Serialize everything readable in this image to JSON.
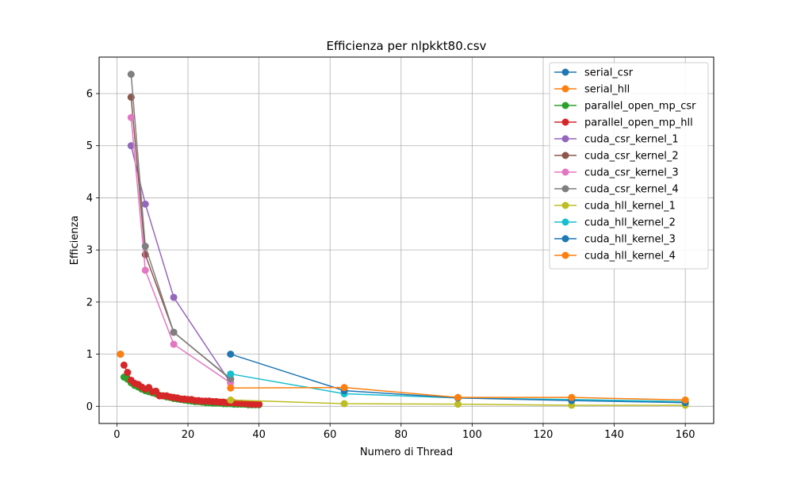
{
  "chart_data": {
    "type": "line",
    "title": "Efficienza per nlpkkt80.csv",
    "xlabel": "Numero di Thread",
    "ylabel": "Efficienza",
    "xlim": [
      -5,
      168
    ],
    "ylim": [
      -0.33,
      6.7
    ],
    "xticks": [
      0,
      20,
      40,
      60,
      80,
      100,
      120,
      140,
      160
    ],
    "yticks": [
      0,
      1,
      2,
      3,
      4,
      5,
      6
    ],
    "grid": true,
    "legend_position": "top-right",
    "series": [
      {
        "name": "serial_csr",
        "color": "#1f77b4",
        "x": [
          1
        ],
        "y": [
          1.0
        ]
      },
      {
        "name": "serial_hll",
        "color": "#ff7f0e",
        "x": [
          1
        ],
        "y": [
          1.0
        ]
      },
      {
        "name": "parallel_open_mp_csr",
        "color": "#2ca02c",
        "x": [
          2,
          3,
          4,
          5,
          6,
          7,
          8,
          9,
          10,
          11,
          12,
          13,
          14,
          15,
          16,
          17,
          18,
          19,
          20,
          21,
          22,
          23,
          24,
          25,
          26,
          27,
          28,
          29,
          30,
          31,
          32,
          33,
          34,
          35,
          36,
          37,
          38,
          39,
          40
        ],
        "y": [
          0.56,
          0.52,
          0.45,
          0.4,
          0.37,
          0.33,
          0.3,
          0.28,
          0.26,
          0.24,
          0.21,
          0.2,
          0.18,
          0.17,
          0.15,
          0.14,
          0.13,
          0.12,
          0.11,
          0.1,
          0.09,
          0.09,
          0.08,
          0.07,
          0.07,
          0.06,
          0.06,
          0.06,
          0.05,
          0.05,
          0.05,
          0.04,
          0.04,
          0.04,
          0.04,
          0.03,
          0.03,
          0.03,
          0.03
        ]
      },
      {
        "name": "parallel_open_mp_hll",
        "color": "#d62728",
        "x": [
          2,
          3,
          4,
          5,
          6,
          7,
          8,
          9,
          10,
          11,
          12,
          13,
          14,
          15,
          16,
          17,
          18,
          19,
          20,
          21,
          22,
          23,
          24,
          25,
          26,
          27,
          28,
          29,
          30,
          31,
          32,
          33,
          34,
          35,
          36,
          37,
          38,
          39,
          40
        ],
        "y": [
          0.79,
          0.65,
          0.5,
          0.44,
          0.42,
          0.37,
          0.33,
          0.36,
          0.28,
          0.29,
          0.2,
          0.2,
          0.2,
          0.18,
          0.17,
          0.16,
          0.14,
          0.14,
          0.13,
          0.13,
          0.11,
          0.11,
          0.1,
          0.1,
          0.1,
          0.09,
          0.09,
          0.08,
          0.08,
          0.07,
          0.07,
          0.07,
          0.06,
          0.06,
          0.05,
          0.05,
          0.04,
          0.04,
          0.04
        ]
      },
      {
        "name": "cuda_csr_kernel_1",
        "color": "#9467bd",
        "x": [
          4,
          8,
          16,
          32
        ],
        "y": [
          5.0,
          3.88,
          2.09,
          0.45
        ]
      },
      {
        "name": "cuda_csr_kernel_2",
        "color": "#8c564b",
        "x": [
          4,
          8,
          16,
          32
        ],
        "y": [
          5.93,
          2.91,
          1.42,
          0.52
        ]
      },
      {
        "name": "cuda_csr_kernel_3",
        "color": "#e377c2",
        "x": [
          4,
          8,
          16,
          32
        ],
        "y": [
          5.54,
          2.61,
          1.19,
          0.45
        ]
      },
      {
        "name": "cuda_csr_kernel_4",
        "color": "#7f7f7f",
        "x": [
          4,
          8,
          16,
          32
        ],
        "y": [
          6.37,
          3.07,
          1.42,
          0.53
        ]
      },
      {
        "name": "cuda_hll_kernel_1",
        "color": "#bcbd22",
        "x": [
          32,
          64,
          96,
          128,
          160
        ],
        "y": [
          0.12,
          0.05,
          0.04,
          0.02,
          0.02
        ]
      },
      {
        "name": "cuda_hll_kernel_2",
        "color": "#17becf",
        "x": [
          32,
          64,
          96,
          128,
          160
        ],
        "y": [
          0.62,
          0.24,
          0.16,
          0.13,
          0.09
        ]
      },
      {
        "name": "cuda_hll_kernel_3",
        "color": "#1f77b4",
        "x": [
          32,
          64,
          96,
          128,
          160
        ],
        "y": [
          1.0,
          0.3,
          0.16,
          0.11,
          0.07
        ]
      },
      {
        "name": "cuda_hll_kernel_4",
        "color": "#ff7f0e",
        "x": [
          32,
          64,
          96,
          128,
          160
        ],
        "y": [
          0.35,
          0.36,
          0.17,
          0.17,
          0.12
        ]
      }
    ]
  }
}
